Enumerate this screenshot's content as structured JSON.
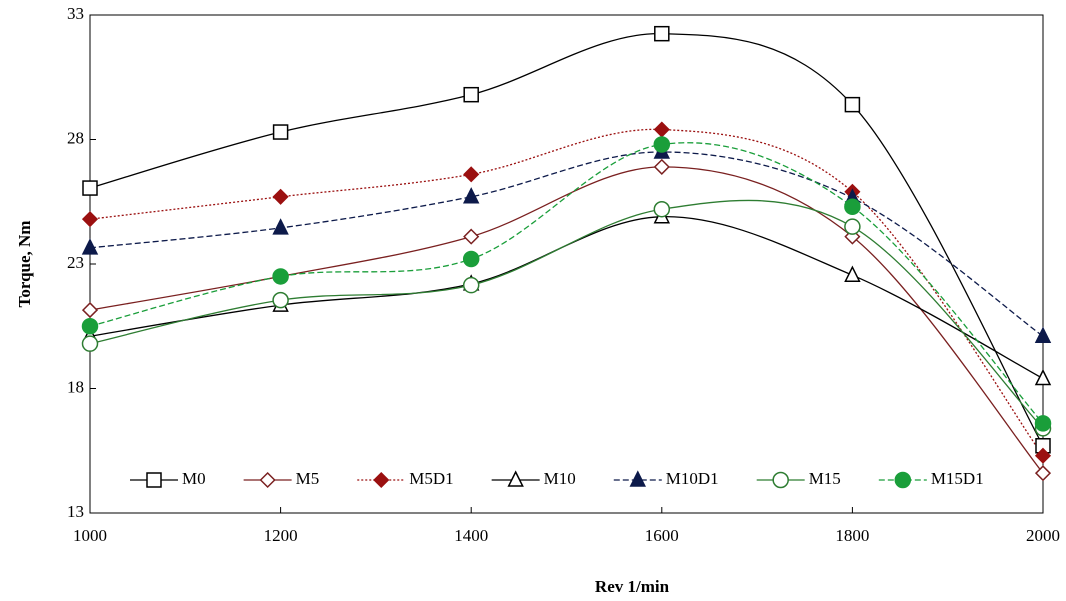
{
  "chart_data": {
    "type": "line",
    "xlabel": "Rev 1/min",
    "ylabel": "Torque, Nm",
    "x": [
      1000,
      1200,
      1400,
      1600,
      1800,
      2000
    ],
    "xlim": [
      1000,
      2000
    ],
    "xticks": [
      1000,
      1200,
      1400,
      1600,
      1800,
      2000
    ],
    "ylim": [
      13,
      33
    ],
    "yticks": [
      13,
      18,
      23,
      28,
      33
    ],
    "grid": false,
    "smooth": true,
    "legend": "bottom",
    "series": [
      {
        "name": "M0",
        "color": "#000000",
        "marker": "square",
        "filled": false,
        "dash": "solid",
        "values": [
          26.05,
          28.3,
          29.8,
          32.25,
          29.4,
          15.7
        ]
      },
      {
        "name": "M5",
        "color": "#7a2020",
        "marker": "diamond",
        "filled": false,
        "dash": "solid",
        "values": [
          21.15,
          22.5,
          24.1,
          26.9,
          24.1,
          14.6
        ]
      },
      {
        "name": "M5D1",
        "color": "#9b1010",
        "marker": "diamond",
        "filled": true,
        "dash": "dotted",
        "values": [
          24.8,
          25.7,
          26.6,
          28.4,
          25.9,
          15.3
        ]
      },
      {
        "name": "M10",
        "color": "#000000",
        "marker": "triangle",
        "filled": false,
        "dash": "solid",
        "values": [
          20.1,
          21.35,
          22.2,
          24.9,
          22.55,
          18.4
        ]
      },
      {
        "name": "M10D1",
        "color": "#0d1a4a",
        "marker": "triangle",
        "filled": true,
        "dash": "dashed",
        "values": [
          23.65,
          24.45,
          25.7,
          27.5,
          25.65,
          20.1
        ]
      },
      {
        "name": "M15",
        "color": "#2e7d32",
        "marker": "circle",
        "filled": false,
        "dash": "solid",
        "values": [
          19.8,
          21.55,
          22.15,
          25.2,
          24.5,
          16.4
        ]
      },
      {
        "name": "M15D1",
        "color": "#1a9e3a",
        "marker": "circle",
        "filled": true,
        "dash": "dashed",
        "values": [
          20.5,
          22.5,
          23.2,
          27.8,
          25.3,
          16.6
        ]
      }
    ]
  }
}
